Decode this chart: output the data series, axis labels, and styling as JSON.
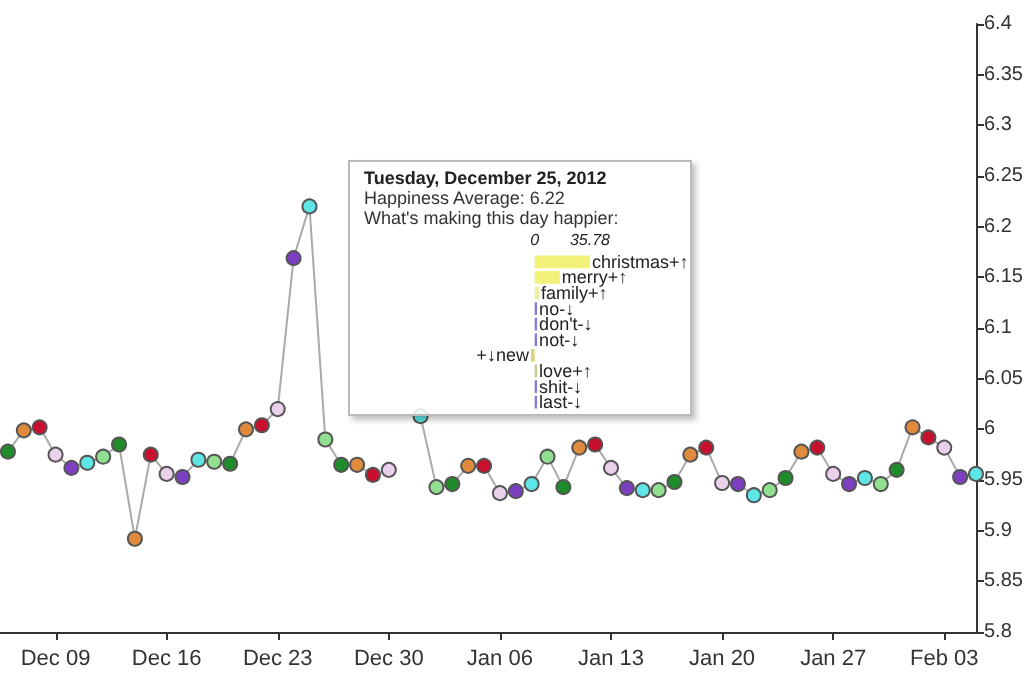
{
  "chart_data": [
    {
      "type": "line",
      "x": [
        "2012-12-06",
        "2012-12-07",
        "2012-12-08",
        "2012-12-09",
        "2012-12-10",
        "2012-12-11",
        "2012-12-12",
        "2012-12-13",
        "2012-12-14",
        "2012-12-15",
        "2012-12-16",
        "2012-12-17",
        "2012-12-18",
        "2012-12-19",
        "2012-12-20",
        "2012-12-21",
        "2012-12-22",
        "2012-12-23",
        "2012-12-24",
        "2012-12-25",
        "2012-12-26",
        "2012-12-27",
        "2012-12-28",
        "2012-12-29",
        "2012-12-30",
        "2012-12-31",
        "2013-01-01",
        "2013-01-02",
        "2013-01-03",
        "2013-01-04",
        "2013-01-05",
        "2013-01-06",
        "2013-01-07",
        "2013-01-08",
        "2013-01-09",
        "2013-01-10",
        "2013-01-11",
        "2013-01-12",
        "2013-01-13",
        "2013-01-14",
        "2013-01-15",
        "2013-01-16",
        "2013-01-17",
        "2013-01-18",
        "2013-01-19",
        "2013-01-20",
        "2013-01-21",
        "2013-01-22",
        "2013-01-23",
        "2013-01-24",
        "2013-01-25",
        "2013-01-26",
        "2013-01-27",
        "2013-01-28",
        "2013-01-29",
        "2013-01-30",
        "2013-01-31",
        "2013-02-01",
        "2013-02-02",
        "2013-02-03",
        "2013-02-04",
        "2013-02-05"
      ],
      "series": [
        {
          "color": "#aaaaaa",
          "values": [
            5.978,
            5.999,
            6.002,
            5.975,
            5.962,
            5.967,
            5.973,
            5.985,
            5.892,
            5.975,
            5.956,
            5.953,
            5.97,
            5.968,
            5.966,
            6.0,
            6.004,
            6.02,
            6.169,
            6.22,
            5.99,
            5.965,
            5.965,
            5.955,
            5.96,
            null,
            6.013,
            5.943,
            5.946,
            5.964,
            5.964,
            5.937,
            5.939,
            5.946,
            5.973,
            5.943,
            5.982,
            5.985,
            5.962,
            5.942,
            5.94,
            5.94,
            5.948,
            5.975,
            5.982,
            5.947,
            5.946,
            5.935,
            5.94,
            5.952,
            5.978,
            5.982,
            5.956,
            5.946,
            5.952,
            5.946,
            5.96,
            6.002,
            5.992,
            5.982,
            5.953,
            5.956
          ],
          "colors": [
            "#1e8c2a",
            "#e08a3c",
            "#c8102e",
            "#ead0ea",
            "#7b3fc0",
            "#5ee6e6",
            "#90e090",
            "#1e8c2a",
            "#e08a3c",
            "#c8102e",
            "#ead0ea",
            "#7b3fc0",
            "#5ee6e6",
            "#90e090",
            "#1e8c2a",
            "#e08a3c",
            "#c8102e",
            "#ead0ea",
            "#7b3fc0",
            "#5ee6e6",
            "#90e090",
            "#1e8c2a",
            "#e08a3c",
            "#c8102e",
            "#ead0ea",
            "#7b3fc0",
            "#5ee6e6",
            "#90e090",
            "#1e8c2a",
            "#e08a3c",
            "#c8102e",
            "#ead0ea",
            "#7b3fc0",
            "#5ee6e6",
            "#90e090",
            "#1e8c2a",
            "#e08a3c",
            "#c8102e",
            "#ead0ea",
            "#7b3fc0",
            "#5ee6e6",
            "#90e090",
            "#1e8c2a",
            "#e08a3c",
            "#c8102e",
            "#ead0ea",
            "#7b3fc0",
            "#5ee6e6",
            "#90e090",
            "#1e8c2a",
            "#e08a3c",
            "#c8102e",
            "#ead0ea",
            "#7b3fc0",
            "#5ee6e6",
            "#90e090",
            "#1e8c2a",
            "#e08a3c",
            "#c8102e",
            "#ead0ea",
            "#7b3fc0",
            "#5ee6e6"
          ]
        }
      ],
      "xlim": [
        "2012-12-05T12:00",
        "2013-02-05"
      ],
      "xticks": [
        {
          "value": "2012-12-09",
          "label": "Dec 09"
        },
        {
          "value": "2012-12-16",
          "label": "Dec 16"
        },
        {
          "value": "2012-12-23",
          "label": "Dec 23"
        },
        {
          "value": "2012-12-30",
          "label": "Dec 30"
        },
        {
          "value": "2013-01-06",
          "label": "Jan 06"
        },
        {
          "value": "2013-01-13",
          "label": "Jan 13"
        },
        {
          "value": "2013-01-20",
          "label": "Jan 20"
        },
        {
          "value": "2013-01-27",
          "label": "Jan 27"
        },
        {
          "value": "2013-02-03",
          "label": "Feb 03"
        }
      ],
      "ylim": [
        5.8,
        6.4
      ],
      "yticks": [
        5.8,
        5.85,
        5.9,
        5.95,
        6.0,
        6.05,
        6.1,
        6.15,
        6.2,
        6.25,
        6.3,
        6.35,
        6.4
      ],
      "grid": false,
      "marker": "circle",
      "line_style": "solid"
    },
    {
      "type": "bar",
      "orientation": "horizontal",
      "title": "Tuesday, December 25, 2012",
      "subtitle": "Happiness Average: 6.22",
      "annotations": [
        "What's making this day happier:"
      ],
      "categories": [
        "christmas+↑",
        "merry+↑",
        "family+↑",
        "no-↓",
        "don't-↓",
        "not-↓",
        "+↓new",
        "love+↑",
        "shit-↓",
        "last-↓"
      ],
      "values": [
        35.78,
        16.3,
        2.8,
        1.6,
        1.6,
        1.6,
        -2.4,
        1.6,
        1.6,
        1.6
      ],
      "colors": [
        "#f2f27a",
        "#f2f27a",
        "#eeeea8",
        "#8a80d0",
        "#8a80d0",
        "#8a80d0",
        "#d8d880",
        "#c8c890",
        "#8a80d0",
        "#8a80d0"
      ],
      "xlim": [
        -3,
        35.78
      ],
      "xticks": [
        0,
        35.78
      ],
      "grid": false
    }
  ]
}
